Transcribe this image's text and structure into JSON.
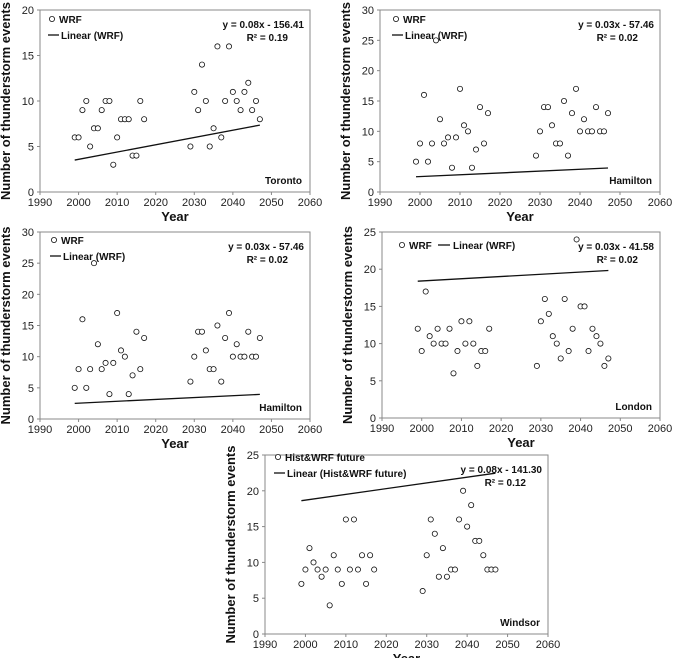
{
  "chart_data": [
    {
      "type": "scatter",
      "title": "",
      "city": "Toronto",
      "xlabel": "Year",
      "ylabel": "Number of thunderstorm events",
      "xlim": [
        1990,
        2060
      ],
      "ylim": [
        0,
        20
      ],
      "xticks": [
        "1990",
        "2000",
        "2010",
        "2020",
        "2030",
        "2040",
        "2050",
        "2060"
      ],
      "yticks": [
        "0",
        "5",
        "10",
        "15",
        "20"
      ],
      "legend": [
        "WRF",
        "Linear (WRF)"
      ],
      "equation": "y = 0.08x - 156.41",
      "r2": "R² = 0.19",
      "trendline": {
        "slope": 0.08,
        "intercept": -156.41,
        "x_start": 1999,
        "x_end": 2047
      },
      "points": [
        [
          1999,
          6
        ],
        [
          2000,
          6
        ],
        [
          2001,
          9
        ],
        [
          2002,
          10
        ],
        [
          2003,
          5
        ],
        [
          2004,
          7
        ],
        [
          2005,
          7
        ],
        [
          2006,
          9
        ],
        [
          2007,
          10
        ],
        [
          2008,
          10
        ],
        [
          2009,
          3
        ],
        [
          2010,
          6
        ],
        [
          2011,
          8
        ],
        [
          2012,
          8
        ],
        [
          2013,
          8
        ],
        [
          2014,
          4
        ],
        [
          2015,
          4
        ],
        [
          2016,
          10
        ],
        [
          2017,
          8
        ],
        [
          2029,
          5
        ],
        [
          2030,
          11
        ],
        [
          2031,
          9
        ],
        [
          2032,
          14
        ],
        [
          2033,
          10
        ],
        [
          2034,
          5
        ],
        [
          2035,
          7
        ],
        [
          2036,
          16
        ],
        [
          2037,
          6
        ],
        [
          2038,
          10
        ],
        [
          2039,
          16
        ],
        [
          2040,
          11
        ],
        [
          2041,
          10
        ],
        [
          2042,
          9
        ],
        [
          2043,
          11
        ],
        [
          2044,
          12
        ],
        [
          2045,
          9
        ],
        [
          2046,
          10
        ],
        [
          2047,
          8
        ]
      ]
    },
    {
      "type": "scatter",
      "title": "",
      "city": "Hamilton",
      "xlabel": "Year",
      "ylabel": "Number of thunderstorm events",
      "xlim": [
        1990,
        2060
      ],
      "ylim": [
        0,
        30
      ],
      "xticks": [
        "1990",
        "2000",
        "2010",
        "2020",
        "2030",
        "2040",
        "2050",
        "2060"
      ],
      "yticks": [
        "0",
        "5",
        "10",
        "15",
        "20",
        "25",
        "30"
      ],
      "legend": [
        "WRF",
        "Linear (WRF)"
      ],
      "equation": "y = 0.03x - 57.46",
      "r2": "R² = 0.02",
      "trendline": {
        "slope": 0.03,
        "intercept": -57.46,
        "x_start": 1999,
        "x_end": 2047
      },
      "points": [
        [
          1999,
          5
        ],
        [
          2000,
          8
        ],
        [
          2001,
          16
        ],
        [
          2002,
          5
        ],
        [
          2003,
          8
        ],
        [
          2004,
          25
        ],
        [
          2005,
          12
        ],
        [
          2006,
          8
        ],
        [
          2007,
          9
        ],
        [
          2008,
          4
        ],
        [
          2009,
          9
        ],
        [
          2010,
          17
        ],
        [
          2011,
          11
        ],
        [
          2012,
          10
        ],
        [
          2013,
          4
        ],
        [
          2014,
          7
        ],
        [
          2015,
          14
        ],
        [
          2016,
          8
        ],
        [
          2017,
          13
        ],
        [
          2029,
          6
        ],
        [
          2030,
          10
        ],
        [
          2031,
          14
        ],
        [
          2032,
          14
        ],
        [
          2033,
          11
        ],
        [
          2034,
          8
        ],
        [
          2035,
          8
        ],
        [
          2036,
          15
        ],
        [
          2037,
          6
        ],
        [
          2038,
          13
        ],
        [
          2039,
          17
        ],
        [
          2040,
          10
        ],
        [
          2041,
          12
        ],
        [
          2042,
          10
        ],
        [
          2043,
          10
        ],
        [
          2044,
          14
        ],
        [
          2045,
          10
        ],
        [
          2046,
          10
        ],
        [
          2047,
          13
        ]
      ]
    },
    {
      "type": "scatter",
      "title": "",
      "city": "Hamilton",
      "xlabel": "Year",
      "ylabel": "Number of thunderstorm events",
      "xlim": [
        1990,
        2060
      ],
      "ylim": [
        0,
        30
      ],
      "xticks": [
        "1990",
        "2000",
        "2010",
        "2020",
        "2030",
        "2040",
        "2050",
        "2060"
      ],
      "yticks": [
        "0",
        "5",
        "10",
        "15",
        "20",
        "25",
        "30"
      ],
      "legend": [
        "WRF",
        "Linear (WRF)"
      ],
      "equation": "y = 0.03x - 57.46",
      "r2": "R² = 0.02",
      "trendline": {
        "slope": 0.03,
        "intercept": -57.46,
        "x_start": 1999,
        "x_end": 2047
      },
      "points": [
        [
          1999,
          5
        ],
        [
          2000,
          8
        ],
        [
          2001,
          16
        ],
        [
          2002,
          5
        ],
        [
          2003,
          8
        ],
        [
          2004,
          25
        ],
        [
          2005,
          12
        ],
        [
          2006,
          8
        ],
        [
          2007,
          9
        ],
        [
          2008,
          4
        ],
        [
          2009,
          9
        ],
        [
          2010,
          17
        ],
        [
          2011,
          11
        ],
        [
          2012,
          10
        ],
        [
          2013,
          4
        ],
        [
          2014,
          7
        ],
        [
          2015,
          14
        ],
        [
          2016,
          8
        ],
        [
          2017,
          13
        ],
        [
          2029,
          6
        ],
        [
          2030,
          10
        ],
        [
          2031,
          14
        ],
        [
          2032,
          14
        ],
        [
          2033,
          11
        ],
        [
          2034,
          8
        ],
        [
          2035,
          8
        ],
        [
          2036,
          15
        ],
        [
          2037,
          6
        ],
        [
          2038,
          13
        ],
        [
          2039,
          17
        ],
        [
          2040,
          10
        ],
        [
          2041,
          12
        ],
        [
          2042,
          10
        ],
        [
          2043,
          10
        ],
        [
          2044,
          14
        ],
        [
          2045,
          10
        ],
        [
          2046,
          10
        ],
        [
          2047,
          13
        ]
      ]
    },
    {
      "type": "scatter",
      "title": "",
      "city": "London",
      "xlabel": "Year",
      "ylabel": "Number of thunderstorm events",
      "xlim": [
        1990,
        2060
      ],
      "ylim": [
        0,
        25
      ],
      "xticks": [
        "1990",
        "2000",
        "2010",
        "2020",
        "2030",
        "2040",
        "2050",
        "2060"
      ],
      "yticks": [
        "0",
        "5",
        "10",
        "15",
        "20",
        "25"
      ],
      "legend": [
        "WRF",
        "Linear (WRF)"
      ],
      "equation": "y = 0.03x - 41.58",
      "r2": "R² = 0.02",
      "trendline": {
        "slope": 0.03,
        "intercept": -41.58,
        "x_start": 1999,
        "x_end": 2047
      },
      "points": [
        [
          1999,
          12
        ],
        [
          2000,
          9
        ],
        [
          2001,
          17
        ],
        [
          2002,
          11
        ],
        [
          2003,
          10
        ],
        [
          2004,
          12
        ],
        [
          2005,
          10
        ],
        [
          2006,
          10
        ],
        [
          2007,
          12
        ],
        [
          2008,
          6
        ],
        [
          2009,
          9
        ],
        [
          2010,
          13
        ],
        [
          2011,
          10
        ],
        [
          2012,
          13
        ],
        [
          2013,
          10
        ],
        [
          2014,
          7
        ],
        [
          2015,
          9
        ],
        [
          2016,
          9
        ],
        [
          2017,
          12
        ],
        [
          2029,
          7
        ],
        [
          2030,
          13
        ],
        [
          2031,
          16
        ],
        [
          2032,
          14
        ],
        [
          2033,
          11
        ],
        [
          2034,
          10
        ],
        [
          2035,
          8
        ],
        [
          2036,
          16
        ],
        [
          2037,
          9
        ],
        [
          2038,
          12
        ],
        [
          2039,
          24
        ],
        [
          2040,
          15
        ],
        [
          2041,
          15
        ],
        [
          2042,
          9
        ],
        [
          2043,
          12
        ],
        [
          2044,
          11
        ],
        [
          2045,
          10
        ],
        [
          2046,
          7
        ],
        [
          2047,
          8
        ]
      ]
    },
    {
      "type": "scatter",
      "title": "",
      "city": "Windsor",
      "xlabel": "Year",
      "ylabel": "Number of thunderstorm events",
      "xlim": [
        1990,
        2060
      ],
      "ylim": [
        0,
        25
      ],
      "xticks": [
        "1990",
        "2000",
        "2010",
        "2020",
        "2030",
        "2040",
        "2050",
        "2060"
      ],
      "yticks": [
        "0",
        "5",
        "10",
        "15",
        "20",
        "25"
      ],
      "legend": [
        "Hist&WRF future",
        "Linear (Hist&WRF future)"
      ],
      "equation": "y = 0.08x - 141.30",
      "r2": "R² = 0.12",
      "trendline": {
        "slope": 0.08,
        "intercept": -141.3,
        "x_start": 1999,
        "x_end": 2047
      },
      "points": [
        [
          1999,
          7
        ],
        [
          2000,
          9
        ],
        [
          2001,
          12
        ],
        [
          2002,
          10
        ],
        [
          2003,
          9
        ],
        [
          2004,
          8
        ],
        [
          2005,
          9
        ],
        [
          2006,
          4
        ],
        [
          2007,
          11
        ],
        [
          2008,
          9
        ],
        [
          2009,
          7
        ],
        [
          2010,
          16
        ],
        [
          2011,
          9
        ],
        [
          2012,
          16
        ],
        [
          2013,
          9
        ],
        [
          2014,
          11
        ],
        [
          2015,
          7
        ],
        [
          2016,
          11
        ],
        [
          2017,
          9
        ],
        [
          2029,
          6
        ],
        [
          2030,
          11
        ],
        [
          2031,
          16
        ],
        [
          2032,
          14
        ],
        [
          2033,
          8
        ],
        [
          2034,
          12
        ],
        [
          2035,
          8
        ],
        [
          2036,
          9
        ],
        [
          2037,
          9
        ],
        [
          2038,
          16
        ],
        [
          2039,
          20
        ],
        [
          2040,
          15
        ],
        [
          2041,
          18
        ],
        [
          2042,
          13
        ],
        [
          2043,
          13
        ],
        [
          2044,
          11
        ],
        [
          2045,
          9
        ],
        [
          2046,
          9
        ],
        [
          2047,
          9
        ]
      ]
    }
  ]
}
